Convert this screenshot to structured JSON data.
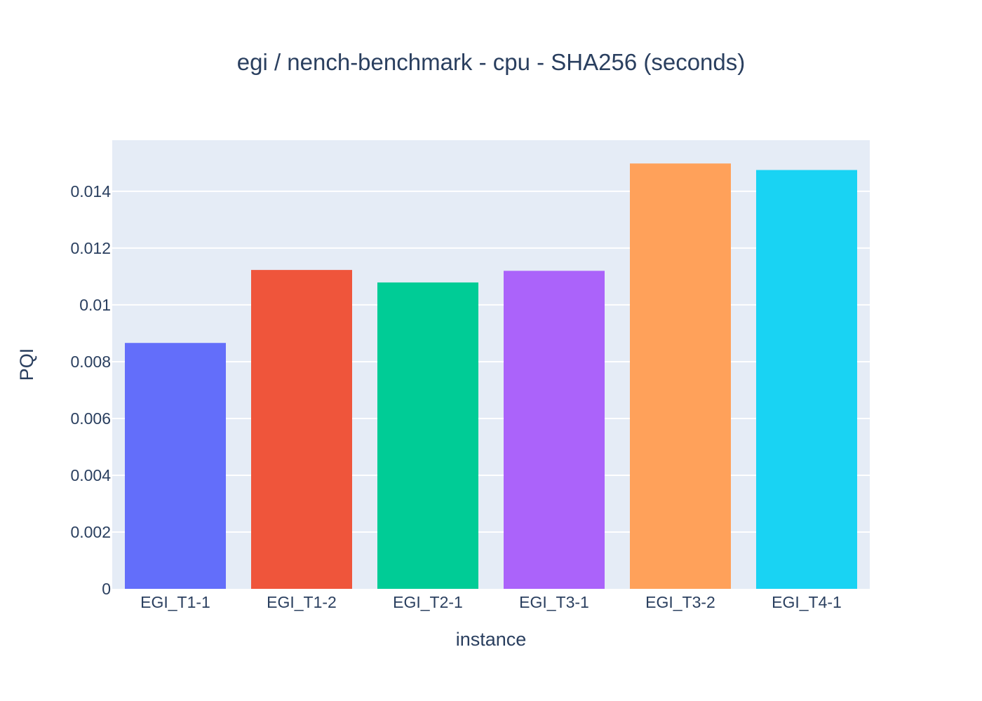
{
  "chart_data": {
    "type": "bar",
    "title": "egi / nench-benchmark - cpu - SHA256 (seconds)",
    "xlabel": "instance",
    "ylabel": "PQI",
    "categories": [
      "EGI_T1-1",
      "EGI_T1-2",
      "EGI_T2-1",
      "EGI_T3-1",
      "EGI_T3-2",
      "EGI_T4-1"
    ],
    "values": [
      0.00866,
      0.01123,
      0.01079,
      0.0112,
      0.01498,
      0.01475
    ],
    "colors": [
      "#636efa",
      "#ef553b",
      "#00cc96",
      "#ab63fa",
      "#ffa15a",
      "#19d3f3"
    ],
    "ylim": [
      0,
      0.0158
    ],
    "yticks": [
      0,
      0.002,
      0.004,
      0.006,
      0.008,
      0.01,
      0.012,
      0.014
    ],
    "ytick_labels": [
      "0",
      "0.002",
      "0.004",
      "0.006",
      "0.008",
      "0.01",
      "0.012",
      "0.014"
    ],
    "grid": true,
    "plot_bg": "#e5ecf6",
    "grid_color": "#ffffff",
    "text_color": "#2a3f5f"
  }
}
